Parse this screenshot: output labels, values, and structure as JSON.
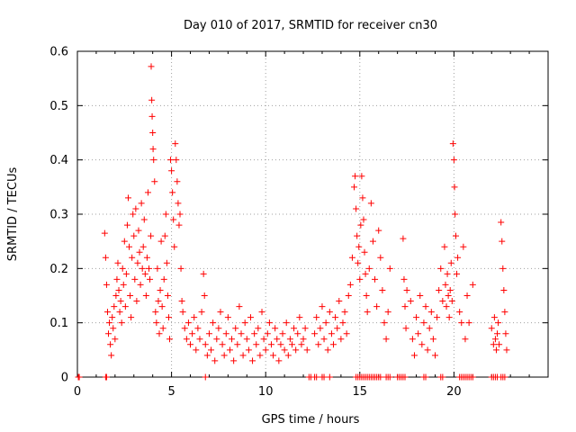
{
  "chart_data": {
    "type": "scatter",
    "title": "Day 010 of 2017, SRMTID for receiver cn30",
    "xlabel": "GPS time / hours",
    "ylabel": "SRMTID / TECUs",
    "xlim": [
      0,
      25
    ],
    "ylim": [
      0,
      0.6
    ],
    "x_ticks": [
      0,
      5,
      10,
      15,
      20
    ],
    "y_ticks": [
      0,
      0.1,
      0.2,
      0.3,
      0.4,
      0.5,
      0.6
    ],
    "x_tick_labels": [
      "0",
      "5",
      "10",
      "15",
      "20"
    ],
    "y_tick_labels": [
      "0",
      "0.1",
      "0.2",
      "0.3",
      "0.4",
      "0.5",
      "0.6"
    ],
    "grid": true,
    "marker": "+",
    "color": "#ff0000",
    "series": [
      {
        "name": "SRMTID",
        "points": [
          [
            0.05,
            0
          ],
          [
            0.1,
            0
          ],
          [
            1.5,
            0
          ],
          [
            1.55,
            0
          ],
          [
            1.45,
            0.265
          ],
          [
            1.5,
            0.22
          ],
          [
            1.55,
            0.17
          ],
          [
            1.6,
            0.12
          ],
          [
            1.65,
            0.08
          ],
          [
            1.7,
            0.1
          ],
          [
            1.75,
            0.06
          ],
          [
            1.8,
            0.04
          ],
          [
            1.85,
            0.11
          ],
          [
            1.9,
            0.09
          ],
          [
            1.95,
            0.13
          ],
          [
            2.0,
            0.07
          ],
          [
            2.05,
            0.15
          ],
          [
            2.1,
            0.18
          ],
          [
            2.15,
            0.21
          ],
          [
            2.2,
            0.16
          ],
          [
            2.25,
            0.12
          ],
          [
            2.3,
            0.14
          ],
          [
            2.35,
            0.1
          ],
          [
            2.4,
            0.2
          ],
          [
            2.45,
            0.17
          ],
          [
            2.5,
            0.25
          ],
          [
            2.55,
            0.13
          ],
          [
            2.6,
            0.19
          ],
          [
            2.65,
            0.28
          ],
          [
            2.7,
            0.33
          ],
          [
            2.75,
            0.24
          ],
          [
            2.8,
            0.15
          ],
          [
            2.85,
            0.11
          ],
          [
            2.9,
            0.22
          ],
          [
            2.95,
            0.3
          ],
          [
            3.0,
            0.26
          ],
          [
            3.05,
            0.18
          ],
          [
            3.1,
            0.31
          ],
          [
            3.15,
            0.14
          ],
          [
            3.2,
            0.21
          ],
          [
            3.25,
            0.27
          ],
          [
            3.3,
            0.23
          ],
          [
            3.35,
            0.17
          ],
          [
            3.4,
            0.32
          ],
          [
            3.45,
            0.2
          ],
          [
            3.5,
            0.24
          ],
          [
            3.55,
            0.29
          ],
          [
            3.6,
            0.19
          ],
          [
            3.65,
            0.15
          ],
          [
            3.7,
            0.22
          ],
          [
            3.75,
            0.34
          ],
          [
            3.8,
            0.2
          ],
          [
            3.85,
            0.18
          ],
          [
            3.9,
            0.26
          ],
          [
            3.92,
            0.572
          ],
          [
            3.95,
            0.51
          ],
          [
            3.97,
            0.48
          ],
          [
            4.0,
            0.45
          ],
          [
            4.02,
            0.42
          ],
          [
            4.05,
            0.4
          ],
          [
            4.1,
            0.36
          ],
          [
            4.15,
            0.12
          ],
          [
            4.2,
            0.1
          ],
          [
            4.25,
            0.2
          ],
          [
            4.3,
            0.14
          ],
          [
            4.35,
            0.08
          ],
          [
            4.4,
            0.16
          ],
          [
            4.45,
            0.25
          ],
          [
            4.5,
            0.13
          ],
          [
            4.55,
            0.09
          ],
          [
            4.6,
            0.18
          ],
          [
            4.65,
            0.26
          ],
          [
            4.7,
            0.3
          ],
          [
            4.75,
            0.21
          ],
          [
            4.8,
            0.15
          ],
          [
            4.85,
            0.11
          ],
          [
            4.9,
            0.07
          ],
          [
            4.95,
            0.4
          ],
          [
            5.0,
            0.38
          ],
          [
            5.05,
            0.34
          ],
          [
            5.1,
            0.29
          ],
          [
            5.15,
            0.24
          ],
          [
            5.2,
            0.43
          ],
          [
            5.25,
            0.4
          ],
          [
            5.3,
            0.36
          ],
          [
            5.35,
            0.32
          ],
          [
            5.4,
            0.28
          ],
          [
            5.45,
            0.3
          ],
          [
            5.5,
            0.2
          ],
          [
            5.55,
            0.14
          ],
          [
            5.6,
            0.12
          ],
          [
            5.7,
            0.09
          ],
          [
            5.8,
            0.07
          ],
          [
            5.9,
            0.1
          ],
          [
            6.0,
            0.06
          ],
          [
            6.1,
            0.08
          ],
          [
            6.2,
            0.11
          ],
          [
            6.3,
            0.05
          ],
          [
            6.4,
            0.09
          ],
          [
            6.5,
            0.07
          ],
          [
            6.6,
            0.12
          ],
          [
            6.7,
            0.19
          ],
          [
            6.75,
            0.15
          ],
          [
            6.8,
            0.06
          ],
          [
            6.9,
            0.04
          ],
          [
            7.0,
            0.08
          ],
          [
            7.1,
            0.05
          ],
          [
            7.2,
            0.1
          ],
          [
            7.3,
            0.03
          ],
          [
            7.4,
            0.07
          ],
          [
            7.5,
            0.09
          ],
          [
            7.6,
            0.12
          ],
          [
            7.7,
            0.06
          ],
          [
            7.8,
            0.04
          ],
          [
            7.9,
            0.08
          ],
          [
            8.0,
            0.11
          ],
          [
            8.1,
            0.05
          ],
          [
            8.2,
            0.07
          ],
          [
            8.3,
            0.03
          ],
          [
            8.4,
            0.09
          ],
          [
            8.5,
            0.06
          ],
          [
            8.6,
            0.13
          ],
          [
            8.7,
            0.08
          ],
          [
            8.8,
            0.04
          ],
          [
            8.9,
            0.1
          ],
          [
            9.0,
            0.07
          ],
          [
            9.1,
            0.05
          ],
          [
            9.2,
            0.11
          ],
          [
            9.3,
            0.03
          ],
          [
            9.4,
            0.08
          ],
          [
            9.5,
            0.06
          ],
          [
            9.6,
            0.09
          ],
          [
            9.7,
            0.04
          ],
          [
            9.8,
            0.12
          ],
          [
            9.9,
            0.07
          ],
          [
            10.0,
            0.05
          ],
          [
            10.1,
            0.08
          ],
          [
            10.2,
            0.1
          ],
          [
            10.3,
            0.06
          ],
          [
            10.4,
            0.04
          ],
          [
            10.5,
            0.09
          ],
          [
            10.6,
            0.07
          ],
          [
            10.7,
            0.03
          ],
          [
            10.8,
            0.06
          ],
          [
            10.9,
            0.08
          ],
          [
            11.0,
            0.05
          ],
          [
            11.1,
            0.1
          ],
          [
            11.2,
            0.04
          ],
          [
            11.3,
            0.07
          ],
          [
            11.4,
            0.06
          ],
          [
            11.5,
            0.09
          ],
          [
            11.6,
            0.05
          ],
          [
            11.7,
            0.08
          ],
          [
            11.8,
            0.11
          ],
          [
            11.9,
            0.06
          ],
          [
            12.0,
            0.07
          ],
          [
            12.1,
            0.09
          ],
          [
            12.2,
            0.05
          ],
          [
            6.8,
            0
          ],
          [
            12.3,
            0
          ],
          [
            12.4,
            0
          ],
          [
            12.6,
            0
          ],
          [
            12.7,
            0
          ],
          [
            13.0,
            0
          ],
          [
            13.1,
            0
          ],
          [
            13.4,
            0
          ],
          [
            12.6,
            0.08
          ],
          [
            12.7,
            0.11
          ],
          [
            12.8,
            0.06
          ],
          [
            12.9,
            0.09
          ],
          [
            13.0,
            0.13
          ],
          [
            13.1,
            0.07
          ],
          [
            13.2,
            0.1
          ],
          [
            13.3,
            0.05
          ],
          [
            13.4,
            0.12
          ],
          [
            13.5,
            0.08
          ],
          [
            13.6,
            0.06
          ],
          [
            13.7,
            0.11
          ],
          [
            13.8,
            0.09
          ],
          [
            13.9,
            0.14
          ],
          [
            14.0,
            0.07
          ],
          [
            14.1,
            0.1
          ],
          [
            14.2,
            0.12
          ],
          [
            14.3,
            0.08
          ],
          [
            14.4,
            0.15
          ],
          [
            14.5,
            0.17
          ],
          [
            14.6,
            0.22
          ],
          [
            14.7,
            0.35
          ],
          [
            14.75,
            0.37
          ],
          [
            14.8,
            0.31
          ],
          [
            14.85,
            0.26
          ],
          [
            14.9,
            0.21
          ],
          [
            14.95,
            0.24
          ],
          [
            15.0,
            0.18
          ],
          [
            15.05,
            0.28
          ],
          [
            15.1,
            0.37
          ],
          [
            15.15,
            0.33
          ],
          [
            15.2,
            0.29
          ],
          [
            15.25,
            0.23
          ],
          [
            15.3,
            0.19
          ],
          [
            15.35,
            0.15
          ],
          [
            15.4,
            0.12
          ],
          [
            15.5,
            0.2
          ],
          [
            15.6,
            0.32
          ],
          [
            15.7,
            0.25
          ],
          [
            15.8,
            0.18
          ],
          [
            15.9,
            0.13
          ],
          [
            16.0,
            0.27
          ],
          [
            16.1,
            0.22
          ],
          [
            16.2,
            0.16
          ],
          [
            16.3,
            0.1
          ],
          [
            16.4,
            0.07
          ],
          [
            16.5,
            0.12
          ],
          [
            16.6,
            0.2
          ],
          [
            14.8,
            0
          ],
          [
            14.9,
            0
          ],
          [
            15.0,
            0
          ],
          [
            15.1,
            0
          ],
          [
            15.2,
            0
          ],
          [
            15.3,
            0
          ],
          [
            15.4,
            0
          ],
          [
            15.5,
            0
          ],
          [
            15.6,
            0
          ],
          [
            15.7,
            0
          ],
          [
            15.8,
            0
          ],
          [
            15.9,
            0
          ],
          [
            16.0,
            0
          ],
          [
            16.1,
            0
          ],
          [
            16.4,
            0
          ],
          [
            16.5,
            0
          ],
          [
            16.6,
            0
          ],
          [
            17.0,
            0
          ],
          [
            17.1,
            0
          ],
          [
            17.2,
            0
          ],
          [
            17.3,
            0
          ],
          [
            17.4,
            0
          ],
          [
            18.4,
            0
          ],
          [
            18.5,
            0
          ],
          [
            19.3,
            0
          ],
          [
            19.4,
            0
          ],
          [
            20.3,
            0
          ],
          [
            20.4,
            0
          ],
          [
            20.5,
            0
          ],
          [
            20.6,
            0
          ],
          [
            20.7,
            0
          ],
          [
            20.8,
            0
          ],
          [
            20.9,
            0
          ],
          [
            21.0,
            0
          ],
          [
            22.0,
            0
          ],
          [
            22.1,
            0
          ],
          [
            22.2,
            0
          ],
          [
            22.3,
            0
          ],
          [
            22.5,
            0
          ],
          [
            22.6,
            0
          ],
          [
            22.7,
            0
          ],
          [
            17.3,
            0.255
          ],
          [
            17.35,
            0.18
          ],
          [
            17.4,
            0.13
          ],
          [
            17.45,
            0.09
          ],
          [
            17.5,
            0.16
          ],
          [
            17.7,
            0.14
          ],
          [
            17.8,
            0.07
          ],
          [
            17.9,
            0.04
          ],
          [
            18.0,
            0.11
          ],
          [
            18.1,
            0.08
          ],
          [
            18.2,
            0.15
          ],
          [
            18.3,
            0.06
          ],
          [
            18.4,
            0.1
          ],
          [
            18.5,
            0.13
          ],
          [
            18.6,
            0.05
          ],
          [
            18.7,
            0.09
          ],
          [
            18.8,
            0.12
          ],
          [
            18.9,
            0.07
          ],
          [
            19.0,
            0.04
          ],
          [
            19.1,
            0.11
          ],
          [
            19.2,
            0.16
          ],
          [
            19.3,
            0.2
          ],
          [
            19.4,
            0.14
          ],
          [
            19.5,
            0.24
          ],
          [
            19.55,
            0.17
          ],
          [
            19.6,
            0.13
          ],
          [
            19.65,
            0.19
          ],
          [
            19.7,
            0.15
          ],
          [
            19.75,
            0.11
          ],
          [
            19.8,
            0.16
          ],
          [
            19.85,
            0.21
          ],
          [
            19.9,
            0.14
          ],
          [
            19.95,
            0.43
          ],
          [
            20.0,
            0.4
          ],
          [
            20.03,
            0.35
          ],
          [
            20.06,
            0.3
          ],
          [
            20.1,
            0.26
          ],
          [
            20.15,
            0.19
          ],
          [
            20.2,
            0.22
          ],
          [
            20.3,
            0.12
          ],
          [
            20.4,
            0.1
          ],
          [
            20.5,
            0.24
          ],
          [
            20.6,
            0.07
          ],
          [
            20.7,
            0.15
          ],
          [
            20.8,
            0.1
          ],
          [
            21.0,
            0.17
          ],
          [
            22.0,
            0.09
          ],
          [
            22.1,
            0.06
          ],
          [
            22.15,
            0.11
          ],
          [
            22.2,
            0.07
          ],
          [
            22.25,
            0.05
          ],
          [
            22.3,
            0.08
          ],
          [
            22.35,
            0.1
          ],
          [
            22.4,
            0.06
          ],
          [
            22.5,
            0.285
          ],
          [
            22.55,
            0.25
          ],
          [
            22.6,
            0.2
          ],
          [
            22.65,
            0.16
          ],
          [
            22.7,
            0.12
          ],
          [
            22.75,
            0.08
          ],
          [
            22.8,
            0.05
          ]
        ]
      }
    ]
  }
}
